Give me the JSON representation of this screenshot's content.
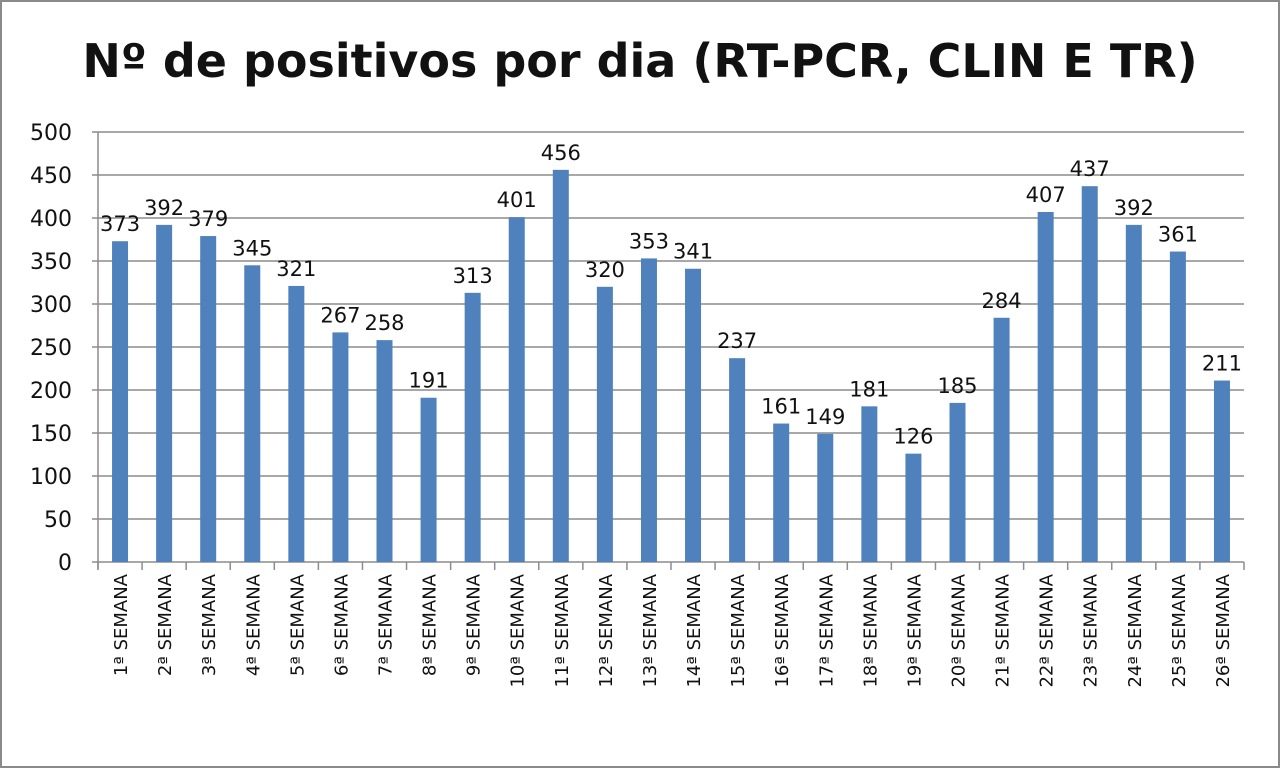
{
  "chart_data": {
    "type": "bar",
    "title": "Nº de positivos por dia (RT-PCR, CLIN E TR)",
    "xlabel": "",
    "ylabel": "",
    "ylim": [
      0,
      500
    ],
    "yticks": [
      0,
      50,
      100,
      150,
      200,
      250,
      300,
      350,
      400,
      450,
      500
    ],
    "grid": true,
    "legend": "none",
    "bar_color": "#4f81bd",
    "categories": [
      "1ª SEMANA",
      "2ª SEMANA",
      "3ª SEMANA",
      "4ª SEMANA",
      "5ª SEMANA",
      "6ª SEMANA",
      "7ª SEMANA",
      "8ª SEMANA",
      "9ª SEMANA",
      "10ª SEMANA",
      "11ª SEMANA",
      "12ª SEMANA",
      "13ª SEMANA",
      "14ª SEMANA",
      "15ª SEMANA",
      "16ª SEMANA",
      "17ª SEMANA",
      "18ª SEMANA",
      "19ª SEMANA",
      "20ª SEMANA",
      "21ª SEMANA",
      "22ª SEMANA",
      "23ª SEMANA",
      "24ª SEMANA",
      "25ª SEMANA",
      "26ª SEMANA"
    ],
    "values": [
      373,
      392,
      379,
      345,
      321,
      267,
      258,
      191,
      313,
      401,
      456,
      320,
      353,
      341,
      237,
      161,
      149,
      181,
      126,
      185,
      284,
      407,
      437,
      392,
      361,
      211
    ]
  }
}
